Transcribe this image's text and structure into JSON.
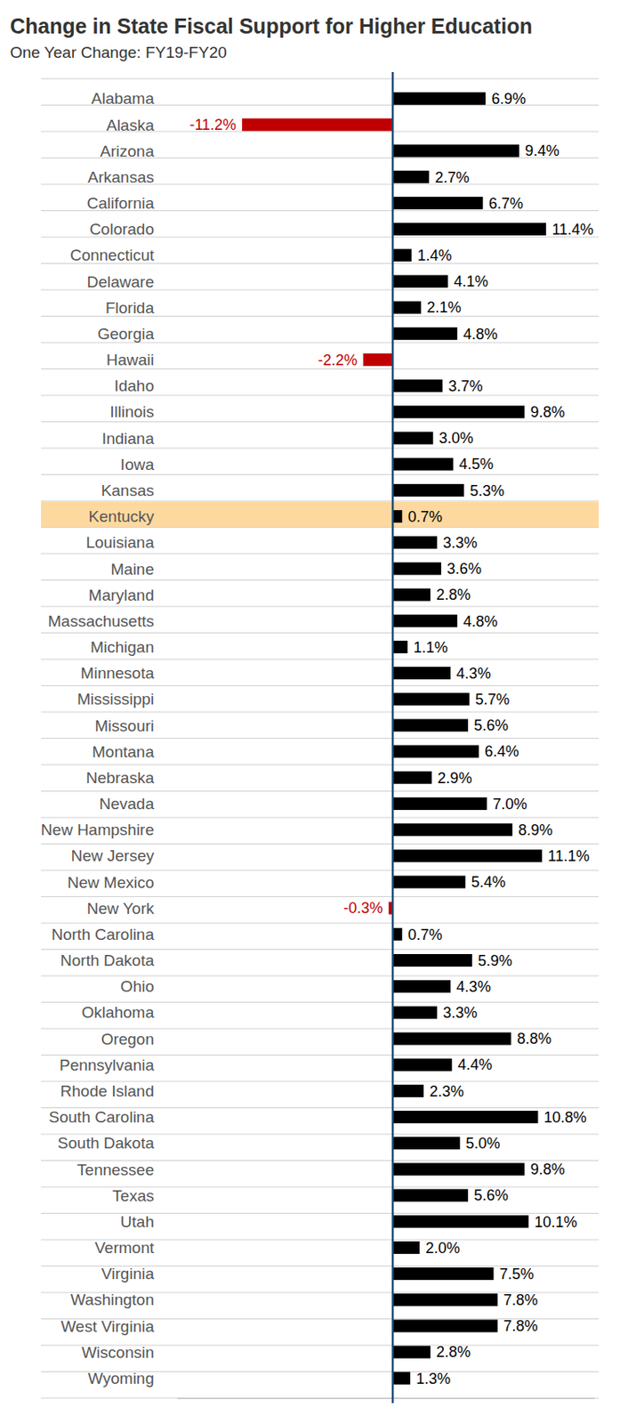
{
  "chart_data": {
    "type": "bar",
    "orientation": "horizontal",
    "title": "Change in State Fiscal Support for Higher Education",
    "subtitle": "One Year Change: FY19-FY20",
    "categories": [
      "Alabama",
      "Alaska",
      "Arizona",
      "Arkansas",
      "California",
      "Colorado",
      "Connecticut",
      "Delaware",
      "Florida",
      "Georgia",
      "Hawaii",
      "Idaho",
      "Illinois",
      "Indiana",
      "Iowa",
      "Kansas",
      "Kentucky",
      "Louisiana",
      "Maine",
      "Maryland",
      "Massachusetts",
      "Michigan",
      "Minnesota",
      "Mississippi",
      "Missouri",
      "Montana",
      "Nebraska",
      "Nevada",
      "New Hampshire",
      "New Jersey",
      "New Mexico",
      "New York",
      "North Carolina",
      "North Dakota",
      "Ohio",
      "Oklahoma",
      "Oregon",
      "Pennsylvania",
      "Rhode Island",
      "South Carolina",
      "South Dakota",
      "Tennessee",
      "Texas",
      "Utah",
      "Vermont",
      "Virginia",
      "Washington",
      "West Virginia",
      "Wisconsin",
      "Wyoming"
    ],
    "values": [
      6.9,
      -11.2,
      9.4,
      2.7,
      6.7,
      11.4,
      1.4,
      4.1,
      2.1,
      4.8,
      -2.2,
      3.7,
      9.8,
      3.0,
      4.5,
      5.3,
      0.7,
      3.3,
      3.6,
      2.8,
      4.8,
      1.1,
      4.3,
      5.7,
      5.6,
      6.4,
      2.9,
      7.0,
      8.9,
      11.1,
      5.4,
      -0.3,
      0.7,
      5.9,
      4.3,
      3.3,
      8.8,
      4.4,
      2.3,
      10.8,
      5.0,
      9.8,
      5.6,
      10.1,
      2.0,
      7.5,
      7.8,
      7.8,
      2.8,
      1.3
    ],
    "value_labels": [
      "6.9%",
      "-11.2%",
      "9.4%",
      "2.7%",
      "6.7%",
      "11.4%",
      "1.4%",
      "4.1%",
      "2.1%",
      "4.8%",
      "-2.2%",
      "3.7%",
      "9.8%",
      "3.0%",
      "4.5%",
      "5.3%",
      "0.7%",
      "3.3%",
      "3.6%",
      "2.8%",
      "4.8%",
      "1.1%",
      "4.3%",
      "5.7%",
      "5.6%",
      "6.4%",
      "2.9%",
      "7.0%",
      "8.9%",
      "11.1%",
      "5.4%",
      "-0.3%",
      "0.7%",
      "5.9%",
      "4.3%",
      "3.3%",
      "8.8%",
      "4.4%",
      "2.3%",
      "10.8%",
      "5.0%",
      "9.8%",
      "5.6%",
      "10.1%",
      "2.0%",
      "7.5%",
      "7.8%",
      "7.8%",
      "2.8%",
      "1.3%"
    ],
    "colors": [
      "#000000",
      "#c00000",
      "#000000",
      "#000000",
      "#000000",
      "#000000",
      "#000000",
      "#000000",
      "#000000",
      "#000000",
      "#c00000",
      "#000000",
      "#000000",
      "#000000",
      "#000000",
      "#000000",
      "#000000",
      "#000000",
      "#000000",
      "#000000",
      "#000000",
      "#000000",
      "#000000",
      "#000000",
      "#000000",
      "#000000",
      "#000000",
      "#000000",
      "#000000",
      "#000000",
      "#000000",
      "#c00000",
      "#000000",
      "#000000",
      "#000000",
      "#000000",
      "#000000",
      "#000000",
      "#000000",
      "#000000",
      "#000000",
      "#000000",
      "#000000",
      "#000000",
      "#000000",
      "#000000",
      "#000000",
      "#000000",
      "#000000",
      "#000000"
    ],
    "xlim": [
      -16,
      15
    ],
    "xticks": [
      0
    ],
    "tick_labels": "y",
    "data_labels": true,
    "grid": true
  }
}
